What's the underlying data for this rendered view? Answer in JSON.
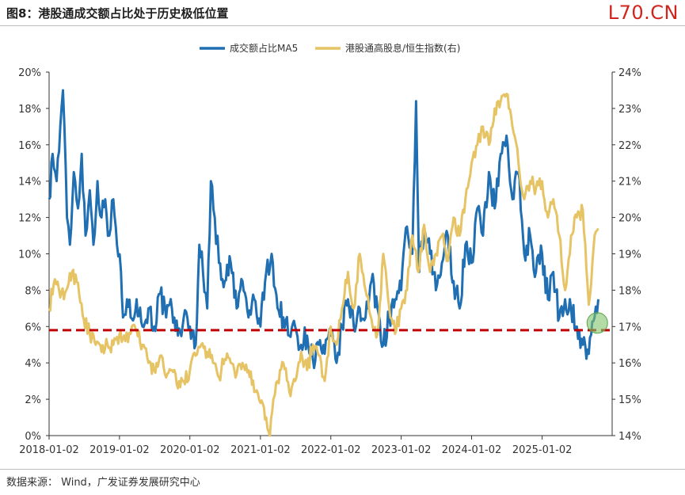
{
  "header": {
    "title": "图8：港股通成交额占比处于历史极低位置",
    "brand": "L70.CN"
  },
  "footer": {
    "source": "数据来源：  Wind，广发证券发展研究中心"
  },
  "chart_data": {
    "type": "line",
    "x_range": [
      "2018-01-02",
      "2025-12-31"
    ],
    "x_ticks": [
      "2018-01-02",
      "2019-01-02",
      "2020-01-02",
      "2021-01-02",
      "2022-01-02",
      "2023-01-02",
      "2024-01-02",
      "2025-01-02"
    ],
    "y_left": {
      "ticks": [
        "0%",
        "2%",
        "4%",
        "6%",
        "8%",
        "10%",
        "12%",
        "14%",
        "16%",
        "18%",
        "20%"
      ],
      "range": [
        0,
        20
      ],
      "unit": "%"
    },
    "y_right": {
      "ticks": [
        "14%",
        "15%",
        "16%",
        "17%",
        "18%",
        "19%",
        "20%",
        "21%",
        "22%",
        "23%",
        "24%"
      ],
      "range": [
        14,
        24
      ],
      "unit": "%"
    },
    "grid": false,
    "legend_position": "top-center",
    "reference_line": {
      "axis": "left",
      "value": 5.8,
      "style": "dashed",
      "color": "#c00000"
    },
    "highlight_marker": {
      "x": "2025-10-15",
      "axis": "left",
      "value": 6.2,
      "color": "#7fc36b"
    },
    "series": [
      {
        "name": "成交额占比MA5",
        "axis": "left",
        "color": "#1f6fb2",
        "points": [
          [
            "2018-01-02",
            13.0
          ],
          [
            "2018-01-20",
            15.5
          ],
          [
            "2018-02-10",
            14.0
          ],
          [
            "2018-03-01",
            17.0
          ],
          [
            "2018-03-15",
            19.0
          ],
          [
            "2018-04-05",
            12.0
          ],
          [
            "2018-04-20",
            10.5
          ],
          [
            "2018-05-10",
            14.5
          ],
          [
            "2018-06-01",
            12.5
          ],
          [
            "2018-06-20",
            15.5
          ],
          [
            "2018-07-10",
            11.0
          ],
          [
            "2018-08-01",
            13.5
          ],
          [
            "2018-08-20",
            10.5
          ],
          [
            "2018-09-10",
            14.0
          ],
          [
            "2018-10-01",
            12.0
          ],
          [
            "2018-10-20",
            13.0
          ],
          [
            "2018-11-10",
            11.0
          ],
          [
            "2018-12-01",
            13.0
          ],
          [
            "2018-12-20",
            10.5
          ],
          [
            "2019-01-10",
            9.0
          ],
          [
            "2019-01-20",
            6.5
          ],
          [
            "2019-02-10",
            7.5
          ],
          [
            "2019-03-01",
            6.5
          ],
          [
            "2019-04-01",
            7.5
          ],
          [
            "2019-05-01",
            6.0
          ],
          [
            "2019-06-01",
            7.0
          ],
          [
            "2019-07-01",
            6.0
          ],
          [
            "2019-08-01",
            7.8
          ],
          [
            "2019-09-01",
            6.5
          ],
          [
            "2019-10-01",
            7.0
          ],
          [
            "2019-11-01",
            5.5
          ],
          [
            "2019-12-01",
            6.5
          ],
          [
            "2020-01-02",
            6.0
          ],
          [
            "2020-02-01",
            5.0
          ],
          [
            "2020-02-20",
            10.5
          ],
          [
            "2020-03-10",
            9.0
          ],
          [
            "2020-04-01",
            7.0
          ],
          [
            "2020-04-20",
            14.0
          ],
          [
            "2020-05-10",
            12.0
          ],
          [
            "2020-06-01",
            9.5
          ],
          [
            "2020-07-01",
            8.5
          ],
          [
            "2020-08-01",
            9.5
          ],
          [
            "2020-09-01",
            7.0
          ],
          [
            "2020-10-01",
            8.5
          ],
          [
            "2020-11-01",
            6.5
          ],
          [
            "2020-12-01",
            7.5
          ],
          [
            "2021-01-02",
            6.0
          ],
          [
            "2021-02-01",
            9.0
          ],
          [
            "2021-03-01",
            10.0
          ],
          [
            "2021-04-01",
            7.0
          ],
          [
            "2021-05-01",
            6.5
          ],
          [
            "2021-06-01",
            5.5
          ],
          [
            "2021-07-01",
            6.0
          ],
          [
            "2021-08-01",
            5.0
          ],
          [
            "2021-09-01",
            5.5
          ],
          [
            "2021-10-01",
            4.2
          ],
          [
            "2021-11-01",
            5.0
          ],
          [
            "2021-12-01",
            4.5
          ],
          [
            "2022-01-02",
            5.5
          ],
          [
            "2022-02-01",
            4.0
          ],
          [
            "2022-03-01",
            6.0
          ],
          [
            "2022-04-01",
            7.5
          ],
          [
            "2022-05-01",
            6.0
          ],
          [
            "2022-06-01",
            7.0
          ],
          [
            "2022-07-01",
            6.5
          ],
          [
            "2022-08-01",
            8.5
          ],
          [
            "2022-09-01",
            7.0
          ],
          [
            "2022-10-01",
            5.0
          ],
          [
            "2022-11-01",
            6.5
          ],
          [
            "2022-12-01",
            7.5
          ],
          [
            "2023-01-02",
            8.0
          ],
          [
            "2023-02-01",
            11.5
          ],
          [
            "2023-03-01",
            10.0
          ],
          [
            "2023-03-20",
            18.4
          ],
          [
            "2023-04-05",
            9.0
          ],
          [
            "2023-05-01",
            11.0
          ],
          [
            "2023-06-01",
            10.0
          ],
          [
            "2023-07-01",
            8.0
          ],
          [
            "2023-08-01",
            9.5
          ],
          [
            "2023-09-01",
            11.0
          ],
          [
            "2023-10-01",
            8.5
          ],
          [
            "2023-11-01",
            7.0
          ],
          [
            "2023-12-01",
            10.5
          ],
          [
            "2024-01-02",
            9.5
          ],
          [
            "2024-02-01",
            12.5
          ],
          [
            "2024-03-01",
            11.0
          ],
          [
            "2024-04-01",
            14.5
          ],
          [
            "2024-05-01",
            12.5
          ],
          [
            "2024-06-01",
            15.5
          ],
          [
            "2024-07-01",
            16.5
          ],
          [
            "2024-08-01",
            13.0
          ],
          [
            "2024-09-01",
            14.5
          ],
          [
            "2024-10-01",
            10.0
          ],
          [
            "2024-11-01",
            11.0
          ],
          [
            "2024-12-01",
            9.0
          ],
          [
            "2025-01-02",
            10.0
          ],
          [
            "2025-02-01",
            7.5
          ],
          [
            "2025-03-01",
            9.0
          ],
          [
            "2025-04-01",
            6.5
          ],
          [
            "2025-05-01",
            7.5
          ],
          [
            "2025-06-01",
            7.0
          ],
          [
            "2025-07-01",
            6.0
          ],
          [
            "2025-08-01",
            5.0
          ],
          [
            "2025-09-01",
            4.5
          ],
          [
            "2025-10-01",
            6.5
          ],
          [
            "2025-10-20",
            7.5
          ]
        ]
      },
      {
        "name": "港股通高股息/恒生指数(右)",
        "axis": "right",
        "color": "#e6c465",
        "points": [
          [
            "2018-01-02",
            17.5
          ],
          [
            "2018-02-01",
            18.3
          ],
          [
            "2018-03-01",
            17.8
          ],
          [
            "2018-04-01",
            18.0
          ],
          [
            "2018-05-01",
            18.5
          ],
          [
            "2018-06-01",
            18.2
          ],
          [
            "2018-07-01",
            17.2
          ],
          [
            "2018-08-01",
            16.8
          ],
          [
            "2018-09-01",
            16.5
          ],
          [
            "2018-10-01",
            16.3
          ],
          [
            "2018-11-01",
            16.5
          ],
          [
            "2018-12-01",
            16.5
          ],
          [
            "2019-01-02",
            16.8
          ],
          [
            "2019-02-01",
            16.6
          ],
          [
            "2019-03-01",
            16.8
          ],
          [
            "2019-04-01",
            16.9
          ],
          [
            "2019-05-01",
            16.5
          ],
          [
            "2019-06-01",
            16.0
          ],
          [
            "2019-07-01",
            15.8
          ],
          [
            "2019-08-01",
            16.2
          ],
          [
            "2019-09-01",
            15.6
          ],
          [
            "2019-10-01",
            15.8
          ],
          [
            "2019-11-01",
            15.3
          ],
          [
            "2019-12-01",
            15.5
          ],
          [
            "2020-01-02",
            15.8
          ],
          [
            "2020-02-01",
            16.2
          ],
          [
            "2020-03-01",
            16.5
          ],
          [
            "2020-04-01",
            16.3
          ],
          [
            "2020-05-01",
            16.0
          ],
          [
            "2020-06-01",
            15.6
          ],
          [
            "2020-07-01",
            16.1
          ],
          [
            "2020-08-01",
            16.0
          ],
          [
            "2020-09-01",
            15.7
          ],
          [
            "2020-10-01",
            16.0
          ],
          [
            "2020-11-01",
            15.8
          ],
          [
            "2020-12-01",
            15.2
          ],
          [
            "2021-01-02",
            14.9
          ],
          [
            "2021-02-01",
            14.5
          ],
          [
            "2021-02-20",
            14.0
          ],
          [
            "2021-03-10",
            15.0
          ],
          [
            "2021-04-01",
            15.5
          ],
          [
            "2021-05-01",
            16.0
          ],
          [
            "2021-06-01",
            15.2
          ],
          [
            "2021-07-01",
            15.5
          ],
          [
            "2021-08-01",
            16.3
          ],
          [
            "2021-09-01",
            15.8
          ],
          [
            "2021-10-01",
            16.5
          ],
          [
            "2021-11-01",
            16.2
          ],
          [
            "2021-12-01",
            15.5
          ],
          [
            "2022-01-02",
            17.0
          ],
          [
            "2022-02-01",
            16.5
          ],
          [
            "2022-03-01",
            17.5
          ],
          [
            "2022-04-01",
            18.5
          ],
          [
            "2022-05-01",
            17.5
          ],
          [
            "2022-06-01",
            19.0
          ],
          [
            "2022-07-01",
            18.0
          ],
          [
            "2022-08-01",
            17.2
          ],
          [
            "2022-09-01",
            16.8
          ],
          [
            "2022-10-01",
            19.0
          ],
          [
            "2022-11-01",
            17.5
          ],
          [
            "2022-12-01",
            16.8
          ],
          [
            "2023-01-02",
            17.5
          ],
          [
            "2023-02-01",
            18.0
          ],
          [
            "2023-03-01",
            19.5
          ],
          [
            "2023-04-01",
            18.5
          ],
          [
            "2023-05-01",
            19.8
          ],
          [
            "2023-06-01",
            18.5
          ],
          [
            "2023-07-01",
            19.0
          ],
          [
            "2023-08-01",
            19.5
          ],
          [
            "2023-09-01",
            18.8
          ],
          [
            "2023-10-01",
            20.0
          ],
          [
            "2023-11-01",
            19.5
          ],
          [
            "2023-12-01",
            20.5
          ],
          [
            "2024-01-02",
            21.5
          ],
          [
            "2024-02-01",
            22.0
          ],
          [
            "2024-03-01",
            22.5
          ],
          [
            "2024-04-01",
            22.0
          ],
          [
            "2024-05-01",
            23.0
          ],
          [
            "2024-06-01",
            23.2
          ],
          [
            "2024-07-01",
            23.4
          ],
          [
            "2024-08-01",
            22.5
          ],
          [
            "2024-09-01",
            21.5
          ],
          [
            "2024-10-01",
            20.5
          ],
          [
            "2024-11-01",
            21.0
          ],
          [
            "2024-12-01",
            20.8
          ],
          [
            "2025-01-02",
            21.0
          ],
          [
            "2025-02-01",
            20.0
          ],
          [
            "2025-03-01",
            20.5
          ],
          [
            "2025-04-01",
            19.5
          ],
          [
            "2025-05-01",
            18.0
          ],
          [
            "2025-06-01",
            19.5
          ],
          [
            "2025-07-01",
            20.0
          ],
          [
            "2025-08-01",
            20.2
          ],
          [
            "2025-09-01",
            17.6
          ],
          [
            "2025-10-01",
            19.5
          ],
          [
            "2025-10-20",
            19.7
          ]
        ]
      }
    ]
  }
}
